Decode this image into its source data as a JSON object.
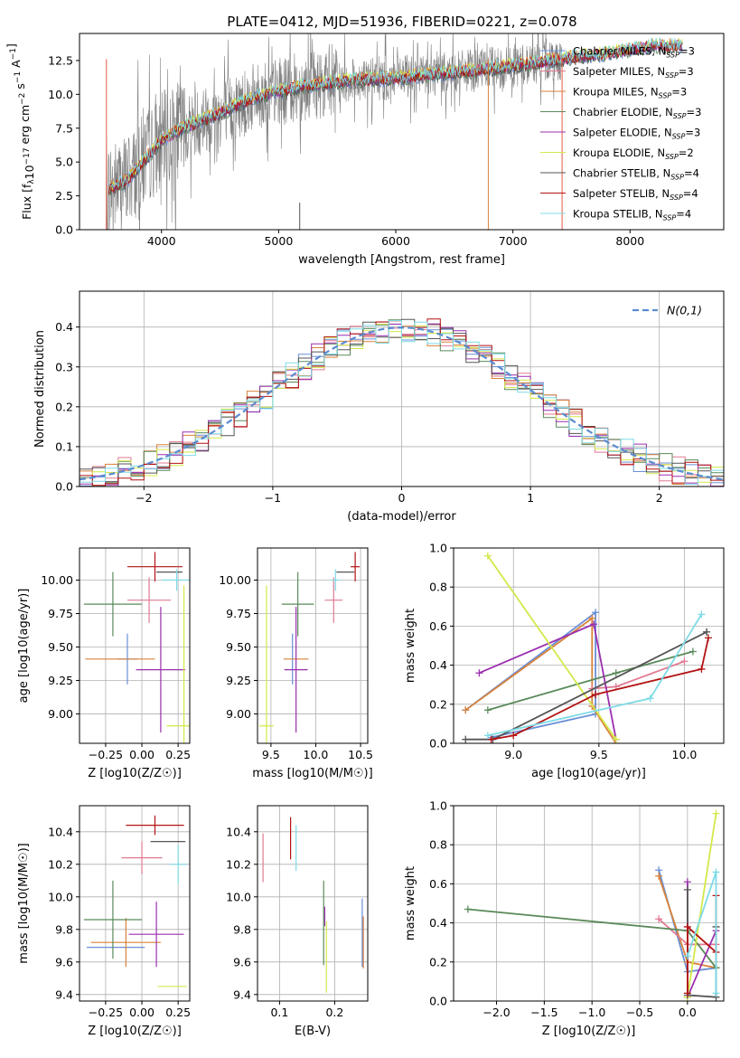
{
  "figure_title": "PLATE=0412, MJD=51936, FIBERID=0221, z=0.078",
  "colors": {
    "Chabrier MILES": "#6a8fd6",
    "Salpeter MILES": "#e07a91",
    "Kroupa MILES": "#d9823b",
    "Chabrier ELODIE": "#5a8a5a",
    "Salpeter ELODIE": "#9b2fae",
    "Kroupa ELODIE": "#d4e84a",
    "Chabrier STELIB": "#555555",
    "Salpeter STELIB": "#b31212",
    "Kroupa STELIB": "#7ddbe6",
    "data": "#808080",
    "normal": "#5b8bd0"
  },
  "chart_data": [
    {
      "id": "spectrum",
      "type": "line",
      "title": "PLATE=0412, MJD=51936, FIBERID=0221, z=0.078",
      "xlabel": "wavelength [Angstrom, rest frame]",
      "ylabel": "Flux [f",
      "ylabel_full": "Flux [f_λ 10^-17 erg cm^-2 s^-1 A^-1]",
      "xlim": [
        3300,
        8800
      ],
      "ylim": [
        0,
        14.5
      ],
      "xticks": [
        "4000",
        "5000",
        "6000",
        "7000",
        "8000"
      ],
      "yticks": [
        "0.0",
        "2.5",
        "5.0",
        "7.5",
        "10.0",
        "12.5"
      ],
      "legend_position": "right",
      "series": [
        {
          "name": "Chabrier MILES",
          "nssp": "3"
        },
        {
          "name": "Salpeter MILES",
          "nssp": "3"
        },
        {
          "name": "Kroupa MILES",
          "nssp": "3"
        },
        {
          "name": "Chabrier ELODIE",
          "nssp": "3"
        },
        {
          "name": "Salpeter ELODIE",
          "nssp": "3"
        },
        {
          "name": "Kroupa ELODIE",
          "nssp": "2"
        },
        {
          "name": "Chabrier STELIB",
          "nssp": "4"
        },
        {
          "name": "Salpeter STELIB",
          "nssp": "4"
        },
        {
          "name": "Kroupa STELIB",
          "nssp": "4"
        }
      ],
      "continuum_x": [
        3550,
        3700,
        3900,
        4000,
        4200,
        4500,
        4800,
        5200,
        5600,
        6000,
        6500,
        7000,
        7400,
        7800,
        8200,
        8400
      ],
      "continuum_y": [
        3.0,
        3.6,
        5.6,
        6.6,
        7.6,
        8.6,
        9.8,
        10.6,
        11.0,
        11.2,
        11.6,
        12.1,
        12.6,
        13.0,
        13.6,
        13.6
      ],
      "model_xrange": [
        3550,
        8450
      ],
      "data_xrange": [
        3500,
        7420
      ]
    },
    {
      "id": "residual-hist",
      "type": "histogram",
      "xlabel": "(data-model)/error",
      "ylabel": "Normed distribution",
      "xlim": [
        -2.5,
        2.5
      ],
      "ylim": [
        0,
        0.49
      ],
      "xticks": [
        "−2",
        "−1",
        "0",
        "1",
        "2"
      ],
      "yticks": [
        "0.0",
        "0.1",
        "0.2",
        "0.3",
        "0.4"
      ],
      "legend": "N(0,1)",
      "bin_width": 0.1,
      "grid": true
    },
    {
      "id": "age-vs-Z",
      "type": "errorbar",
      "xlabel": "Z [log10(Z/Z☉)]",
      "ylabel": "age  [log10(age/yr)]",
      "xlim": [
        -0.43,
        0.33
      ],
      "ylim": [
        8.78,
        10.24
      ],
      "xticks": [
        "−0.25",
        "0.00",
        "0.25"
      ],
      "xtick_values": [
        -0.25,
        0.0,
        0.25
      ],
      "yticks": [
        "9.00",
        "9.25",
        "9.50",
        "9.75",
        "10.00"
      ],
      "ytick_values": [
        9.0,
        9.25,
        9.5,
        9.75,
        10.0
      ],
      "points": [
        {
          "model": "Chabrier MILES",
          "x": -0.1,
          "y": 9.41,
          "xerr": 0.07,
          "yerr": 0.19
        },
        {
          "model": "Kroupa MILES",
          "x": -0.15,
          "y": 9.41,
          "xerr": 0.24,
          "yerr": 0.0
        },
        {
          "model": "Salpeter MILES",
          "x": 0.05,
          "y": 9.85,
          "xerr": 0.15,
          "yerr": 0.17
        },
        {
          "model": "Chabrier ELODIE",
          "x": -0.2,
          "y": 9.82,
          "xerr": 0.2,
          "yerr": 0.24
        },
        {
          "model": "Salpeter ELODIE",
          "x": 0.13,
          "y": 9.33,
          "xerr": 0.17,
          "yerr": 0.47
        },
        {
          "model": "Kroupa ELODIE",
          "x": 0.29,
          "y": 8.91,
          "xerr": 0.12,
          "yerr": 1.05
        },
        {
          "model": "Chabrier STELIB",
          "x": 0.19,
          "y": 10.06,
          "xerr": 0.09,
          "yerr": 0.0
        },
        {
          "model": "Salpeter STELIB",
          "x": 0.09,
          "y": 10.1,
          "xerr": 0.19,
          "yerr": 0.11
        },
        {
          "model": "Kroupa STELIB",
          "x": 0.24,
          "y": 10.0,
          "xerr": 0.1,
          "yerr": 0.08
        }
      ]
    },
    {
      "id": "age-vs-mass",
      "type": "errorbar",
      "xlabel": "mass [log10(M/M☉)]",
      "ylabel": "",
      "xlim": [
        9.35,
        10.58
      ],
      "ylim": [
        8.78,
        10.24
      ],
      "xticks": [
        "9.5",
        "10.0",
        "10.5"
      ],
      "xtick_values": [
        9.5,
        10.0,
        10.5
      ],
      "yticks": [
        "9.00",
        "9.25",
        "9.50",
        "9.75",
        "10.00"
      ],
      "ytick_values": [
        9.0,
        9.25,
        9.5,
        9.75,
        10.0
      ],
      "points": [
        {
          "model": "Chabrier MILES",
          "x": 9.74,
          "y": 9.41,
          "xerr": 0.0,
          "yerr": 0.19
        },
        {
          "model": "Kroupa MILES",
          "x": 9.78,
          "y": 9.41,
          "xerr": 0.14,
          "yerr": 0.0
        },
        {
          "model": "Salpeter MILES",
          "x": 10.2,
          "y": 9.85,
          "xerr": 0.1,
          "yerr": 0.17
        },
        {
          "model": "Chabrier ELODIE",
          "x": 9.8,
          "y": 9.82,
          "xerr": 0.18,
          "yerr": 0.24
        },
        {
          "model": "Salpeter ELODIE",
          "x": 9.78,
          "y": 9.33,
          "xerr": 0.13,
          "yerr": 0.47
        },
        {
          "model": "Kroupa ELODIE",
          "x": 9.45,
          "y": 8.91,
          "xerr": 0.08,
          "yerr": 1.05
        },
        {
          "model": "Chabrier STELIB",
          "x": 10.33,
          "y": 10.06,
          "xerr": 0.1,
          "yerr": 0.0
        },
        {
          "model": "Salpeter STELIB",
          "x": 10.44,
          "y": 10.1,
          "xerr": 0.05,
          "yerr": 0.11
        },
        {
          "model": "Kroupa STELIB",
          "x": 10.22,
          "y": 10.0,
          "xerr": 0.05,
          "yerr": 0.08
        }
      ]
    },
    {
      "id": "mass-weight-vs-age",
      "type": "line",
      "xlabel": "age  [log10(age/yr)]",
      "ylabel": "mass weight",
      "xlim": [
        8.65,
        10.23
      ],
      "ylim": [
        0.0,
        1.0
      ],
      "xticks": [
        "9.0",
        "9.5",
        "10.0"
      ],
      "xtick_values": [
        9.0,
        9.5,
        10.0
      ],
      "yticks": [
        "0.0",
        "0.2",
        "0.4",
        "0.6",
        "0.8",
        "1.0"
      ],
      "ytick_values": [
        0.0,
        0.2,
        0.4,
        0.6,
        0.8,
        1.0
      ],
      "series": [
        {
          "model": "Chabrier MILES",
          "x": [
            8.72,
            9.48,
            9.48,
            8.87
          ],
          "y": [
            0.17,
            0.67,
            0.15,
            0.03
          ]
        },
        {
          "model": "Kroupa MILES",
          "x": [
            8.72,
            9.46,
            9.46,
            9.6
          ],
          "y": [
            0.17,
            0.64,
            0.19,
            0.0
          ]
        },
        {
          "model": "Salpeter MILES",
          "x": [
            9.46,
            9.6,
            10.0
          ],
          "y": [
            0.28,
            0.29,
            0.42
          ]
        },
        {
          "model": "Chabrier ELODIE",
          "x": [
            8.85,
            9.6,
            10.05
          ],
          "y": [
            0.17,
            0.36,
            0.47
          ]
        },
        {
          "model": "Salpeter ELODIE",
          "x": [
            8.8,
            9.47,
            9.6
          ],
          "y": [
            0.36,
            0.61,
            0.02
          ]
        },
        {
          "model": "Kroupa ELODIE",
          "x": [
            8.85,
            9.6
          ],
          "y": [
            0.96,
            0.02
          ]
        },
        {
          "model": "Chabrier STELIB",
          "x": [
            8.72,
            8.88,
            10.13,
            10.13
          ],
          "y": [
            0.02,
            0.02,
            0.57,
            0.57
          ]
        },
        {
          "model": "Salpeter STELIB",
          "x": [
            8.87,
            9.0,
            9.48,
            10.1,
            10.14
          ],
          "y": [
            0.02,
            0.04,
            0.25,
            0.38,
            0.54
          ]
        },
        {
          "model": "Kroupa STELIB",
          "x": [
            8.85,
            9.8,
            10.1
          ],
          "y": [
            0.04,
            0.23,
            0.66
          ]
        }
      ]
    },
    {
      "id": "mass-vs-Z",
      "type": "errorbar",
      "xlabel": "Z [log10(Z/Z☉)]",
      "ylabel": "mass [log10(M/M☉)]",
      "xlim": [
        -0.43,
        0.33
      ],
      "ylim": [
        9.36,
        10.56
      ],
      "xticks": [
        "−0.25",
        "0.00",
        "0.25"
      ],
      "xtick_values": [
        -0.25,
        0.0,
        0.25
      ],
      "yticks": [
        "9.4",
        "9.6",
        "9.8",
        "10.0",
        "10.2",
        "10.4"
      ],
      "ytick_values": [
        9.4,
        9.6,
        9.8,
        10.0,
        10.2,
        10.4
      ],
      "points": [
        {
          "model": "Chabrier MILES",
          "x": -0.18,
          "y": 9.69,
          "xerr": 0.2,
          "yerr": 0.0
        },
        {
          "model": "Kroupa MILES",
          "x": -0.11,
          "y": 9.72,
          "xerr": 0.24,
          "yerr": 0.15
        },
        {
          "model": "Salpeter MILES",
          "x": 0.0,
          "y": 10.24,
          "xerr": 0.14,
          "yerr": 0.1
        },
        {
          "model": "Chabrier ELODIE",
          "x": -0.2,
          "y": 9.86,
          "xerr": 0.2,
          "yerr": 0.24
        },
        {
          "model": "Salpeter ELODIE",
          "x": 0.1,
          "y": 9.77,
          "xerr": 0.19,
          "yerr": 0.2
        },
        {
          "model": "Kroupa ELODIE",
          "x": 0.21,
          "y": 9.45,
          "xerr": 0.1,
          "yerr": 0.0
        },
        {
          "model": "Chabrier STELIB",
          "x": 0.18,
          "y": 10.34,
          "xerr": 0.12,
          "yerr": 0.0
        },
        {
          "model": "Salpeter STELIB",
          "x": 0.09,
          "y": 10.44,
          "xerr": 0.2,
          "yerr": 0.06
        },
        {
          "model": "Kroupa STELIB",
          "x": 0.25,
          "y": 10.2,
          "xerr": 0.06,
          "yerr": 0.12
        }
      ]
    },
    {
      "id": "mass-vs-ebv",
      "type": "errorbar",
      "xlabel": "E(B-V)",
      "ylabel": "",
      "xlim": [
        0.06,
        0.26
      ],
      "ylim": [
        9.36,
        10.56
      ],
      "xticks": [
        "0.1",
        "0.2"
      ],
      "xtick_values": [
        0.1,
        0.2
      ],
      "yticks": [
        "9.4",
        "9.6",
        "9.8",
        "10.0",
        "10.2",
        "10.4"
      ],
      "ytick_values": [
        9.4,
        9.6,
        9.8,
        10.0,
        10.2,
        10.4
      ],
      "points": [
        {
          "model": "Salpeter MILES",
          "x": 0.07,
          "y": 10.24,
          "xerr": 0.0,
          "yerr": 0.15
        },
        {
          "model": "Salpeter STELIB",
          "x": 0.12,
          "y": 10.36,
          "xerr": 0.0,
          "yerr": 0.13
        },
        {
          "model": "Kroupa STELIB",
          "x": 0.13,
          "y": 10.3,
          "xerr": 0.0,
          "yerr": 0.14
        },
        {
          "model": "Chabrier ELODIE",
          "x": 0.18,
          "y": 9.84,
          "xerr": 0.0,
          "yerr": 0.26
        },
        {
          "model": "Salpeter ELODIE",
          "x": 0.182,
          "y": 9.88,
          "xerr": 0.0,
          "yerr": 0.06
        },
        {
          "model": "Kroupa ELODIE",
          "x": 0.185,
          "y": 9.63,
          "xerr": 0.0,
          "yerr": 0.22
        },
        {
          "model": "Chabrier MILES",
          "x": 0.25,
          "y": 9.78,
          "xerr": 0.0,
          "yerr": 0.21
        },
        {
          "model": "Kroupa MILES",
          "x": 0.252,
          "y": 9.72,
          "xerr": 0.0,
          "yerr": 0.16
        }
      ]
    },
    {
      "id": "mass-weight-vs-Z",
      "type": "line",
      "xlabel": "Z [log10(Z/Z☉)]",
      "ylabel": "mass weight",
      "xlim": [
        -2.45,
        0.38
      ],
      "ylim": [
        0.0,
        1.0
      ],
      "xticks": [
        "−2.0",
        "−1.5",
        "−1.0",
        "−0.5",
        "0.0"
      ],
      "xtick_values": [
        -2.0,
        -1.5,
        -1.0,
        -0.5,
        0.0
      ],
      "yticks": [
        "0.0",
        "0.2",
        "0.4",
        "0.6",
        "0.8",
        "1.0"
      ],
      "ytick_values": [
        0.0,
        0.2,
        0.4,
        0.6,
        0.8,
        1.0
      ],
      "series": [
        {
          "model": "Chabrier MILES",
          "x": [
            -0.3,
            0.0,
            0.3
          ],
          "y": [
            0.67,
            0.15,
            0.17
          ]
        },
        {
          "model": "Kroupa MILES",
          "x": [
            -0.3,
            0.0,
            0.3
          ],
          "y": [
            0.64,
            0.2,
            0.17
          ]
        },
        {
          "model": "Salpeter MILES",
          "x": [
            -0.3,
            0.0,
            0.3
          ],
          "y": [
            0.42,
            0.29,
            0.29
          ]
        },
        {
          "model": "Chabrier ELODIE",
          "x": [
            -2.3,
            0.0,
            0.3
          ],
          "y": [
            0.47,
            0.36,
            0.17
          ]
        },
        {
          "model": "Salpeter ELODIE",
          "x": [
            0.0,
            0.0,
            0.3
          ],
          "y": [
            0.61,
            0.02,
            0.36
          ]
        },
        {
          "model": "Kroupa ELODIE",
          "x": [
            0.0,
            0.3
          ],
          "y": [
            0.02,
            0.96
          ]
        },
        {
          "model": "Chabrier STELIB",
          "x": [
            0.0,
            0.0,
            0.3,
            0.3
          ],
          "y": [
            0.57,
            0.03,
            0.02,
            0.38
          ]
        },
        {
          "model": "Salpeter STELIB",
          "x": [
            0.0,
            0.0,
            0.3,
            0.3
          ],
          "y": [
            0.04,
            0.38,
            0.25,
            0.54
          ]
        },
        {
          "model": "Kroupa STELIB",
          "x": [
            0.0,
            0.3,
            0.3
          ],
          "y": [
            0.23,
            0.66,
            0.04
          ]
        }
      ]
    }
  ]
}
